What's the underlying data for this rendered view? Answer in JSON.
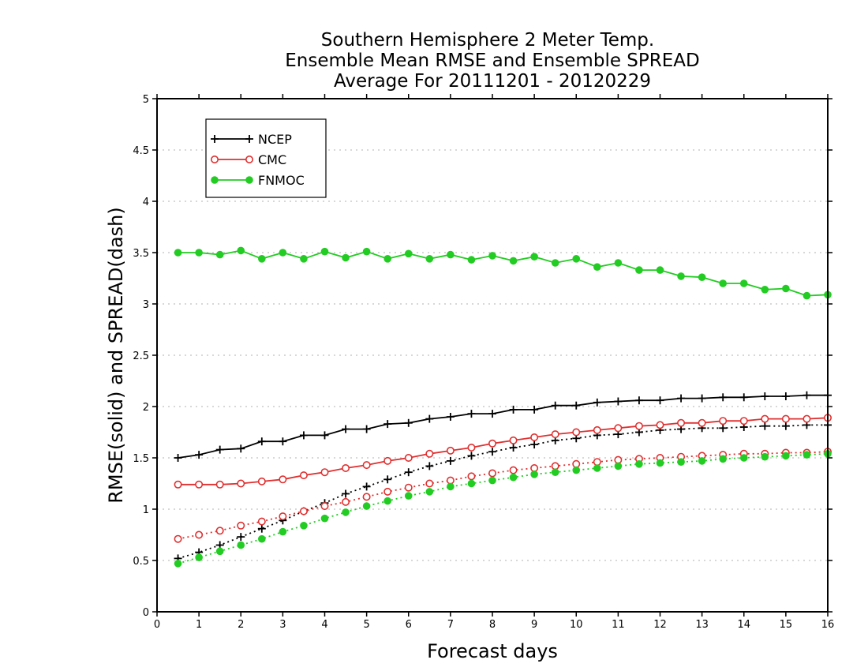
{
  "chart_data": {
    "type": "line",
    "title_lines": [
      "Southern Hemisphere 2 Meter Temp.",
      "Ensemble Mean RMSE and Ensemble SPREAD",
      "Average For 20111201 - 20120229"
    ],
    "xlabel": "Forecast days",
    "ylabel": "RMSE(solid) and SPREAD(dash)",
    "xlim": [
      0,
      16
    ],
    "ylim": [
      0,
      5
    ],
    "x_ticks": [
      "0",
      "1",
      "2",
      "3",
      "4",
      "5",
      "6",
      "7",
      "8",
      "9",
      "10",
      "11",
      "12",
      "13",
      "14",
      "15",
      "16"
    ],
    "y_ticks": [
      "0",
      "0.5",
      "1",
      "1.5",
      "2",
      "2.5",
      "3",
      "3.5",
      "4",
      "4.5",
      "5"
    ],
    "grid": "horizontal dotted",
    "legend_position": "top-left",
    "x": [
      0.5,
      1,
      1.5,
      2,
      2.5,
      3,
      3.5,
      4,
      4.5,
      5,
      5.5,
      6,
      6.5,
      7,
      7.5,
      8,
      8.5,
      9,
      9.5,
      10,
      10.5,
      11,
      11.5,
      12,
      12.5,
      13,
      13.5,
      14,
      14.5,
      15,
      15.5,
      16
    ],
    "series": [
      {
        "name": "NCEP",
        "color": "#000000",
        "marker": "plus",
        "rmse": [
          1.5,
          1.53,
          1.58,
          1.59,
          1.66,
          1.66,
          1.72,
          1.72,
          1.78,
          1.78,
          1.83,
          1.84,
          1.88,
          1.9,
          1.93,
          1.93,
          1.97,
          1.97,
          2.01,
          2.01,
          2.04,
          2.05,
          2.06,
          2.06,
          2.08,
          2.08,
          2.09,
          2.09,
          2.1,
          2.1,
          2.11,
          2.11
        ],
        "spread": [
          0.52,
          0.58,
          0.65,
          0.73,
          0.81,
          0.89,
          0.98,
          1.06,
          1.15,
          1.22,
          1.29,
          1.36,
          1.42,
          1.47,
          1.52,
          1.56,
          1.6,
          1.63,
          1.67,
          1.69,
          1.72,
          1.73,
          1.75,
          1.77,
          1.78,
          1.79,
          1.79,
          1.8,
          1.81,
          1.81,
          1.82,
          1.82
        ]
      },
      {
        "name": "CMC",
        "color": "#e03030",
        "marker": "open-circle",
        "rmse": [
          1.24,
          1.24,
          1.24,
          1.25,
          1.27,
          1.29,
          1.33,
          1.36,
          1.4,
          1.43,
          1.47,
          1.5,
          1.54,
          1.57,
          1.6,
          1.64,
          1.67,
          1.7,
          1.73,
          1.75,
          1.77,
          1.79,
          1.81,
          1.82,
          1.84,
          1.84,
          1.86,
          1.86,
          1.88,
          1.88,
          1.88,
          1.89
        ],
        "spread": [
          0.71,
          0.75,
          0.79,
          0.84,
          0.88,
          0.93,
          0.98,
          1.03,
          1.07,
          1.12,
          1.17,
          1.21,
          1.25,
          1.28,
          1.32,
          1.35,
          1.38,
          1.4,
          1.42,
          1.44,
          1.46,
          1.48,
          1.49,
          1.5,
          1.51,
          1.52,
          1.53,
          1.54,
          1.54,
          1.55,
          1.55,
          1.56
        ]
      },
      {
        "name": "FNMOC",
        "color": "#22cc22",
        "marker": "filled-circle",
        "rmse": [
          3.5,
          3.5,
          3.48,
          3.52,
          3.44,
          3.5,
          3.44,
          3.51,
          3.45,
          3.51,
          3.44,
          3.49,
          3.44,
          3.48,
          3.43,
          3.47,
          3.42,
          3.46,
          3.4,
          3.44,
          3.36,
          3.4,
          3.33,
          3.33,
          3.27,
          3.26,
          3.2,
          3.2,
          3.14,
          3.15,
          3.08,
          3.09
        ],
        "spread": [
          0.47,
          0.53,
          0.59,
          0.65,
          0.71,
          0.78,
          0.84,
          0.91,
          0.97,
          1.03,
          1.08,
          1.13,
          1.17,
          1.22,
          1.25,
          1.28,
          1.31,
          1.34,
          1.36,
          1.38,
          1.4,
          1.42,
          1.44,
          1.45,
          1.46,
          1.47,
          1.49,
          1.5,
          1.51,
          1.52,
          1.53,
          1.54
        ]
      }
    ]
  }
}
